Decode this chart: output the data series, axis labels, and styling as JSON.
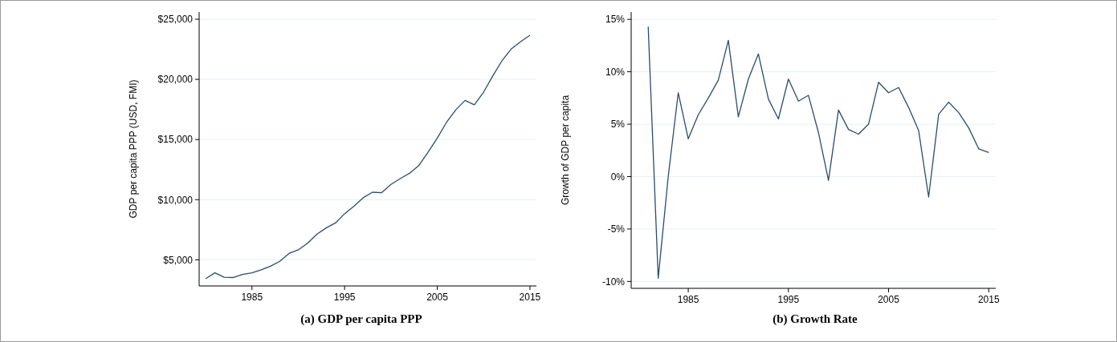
{
  "chart_data": [
    {
      "type": "line",
      "title": "(a) GDP per capita PPP",
      "ylabel": "GDP per capita PPP (USD, FMI)",
      "grid": "y",
      "marker": "none",
      "line_style": "solid",
      "x": [
        1980,
        1981,
        1982,
        1983,
        1984,
        1985,
        1986,
        1987,
        1988,
        1989,
        1990,
        1991,
        1992,
        1993,
        1994,
        1995,
        1996,
        1997,
        1998,
        1999,
        2000,
        2001,
        2002,
        2003,
        2004,
        2005,
        2006,
        2007,
        2008,
        2009,
        2010,
        2011,
        2012,
        2013,
        2014,
        2015
      ],
      "series": [
        {
          "color": "#2b4c6f",
          "values": [
            3430,
            3920,
            3550,
            3530,
            3780,
            3920,
            4170,
            4470,
            4880,
            5530,
            5830,
            6380,
            7120,
            7650,
            8060,
            8830,
            9450,
            10160,
            10620,
            10580,
            11270,
            11750,
            12190,
            12830,
            13940,
            15120,
            16430,
            17470,
            18250,
            17880,
            18940,
            20300,
            21570,
            22540,
            23140,
            23670
          ]
        }
      ],
      "xlim": [
        1979.3,
        2015.7
      ],
      "xticks": [
        1985,
        1995,
        2005,
        2015
      ],
      "ylim": [
        2830,
        25600
      ],
      "yticks": [
        {
          "value": 5000,
          "label": "$5,000"
        },
        {
          "value": 10000,
          "label": "$10,000"
        },
        {
          "value": 15000,
          "label": "$15,000"
        },
        {
          "value": 20000,
          "label": "$20,000"
        },
        {
          "value": 25000,
          "label": "$25,000"
        }
      ]
    },
    {
      "type": "line",
      "title": "(b) Growth Rate",
      "ylabel": "Growth of GDP per capita",
      "grid": "y",
      "marker": "none",
      "line_style": "solid",
      "x": [
        1981,
        1982,
        1983,
        1984,
        1985,
        1986,
        1987,
        1988,
        1989,
        1990,
        1991,
        1992,
        1993,
        1994,
        1995,
        1996,
        1997,
        1998,
        1999,
        2000,
        2001,
        2002,
        2003,
        2004,
        2005,
        2006,
        2007,
        2008,
        2009,
        2010,
        2011,
        2012,
        2013,
        2014,
        2015
      ],
      "series": [
        {
          "color": "#2b4c6f",
          "values": [
            14.3,
            -9.7,
            0,
            8.0,
            3.6,
            5.9,
            7.5,
            9.2,
            13.0,
            5.7,
            9.3,
            11.7,
            7.4,
            5.5,
            9.3,
            7.2,
            7.75,
            4.2,
            -0.35,
            6.35,
            4.5,
            4.05,
            5.0,
            9.0,
            8.0,
            8.5,
            6.6,
            4.4,
            -1.95,
            5.95,
            7.1,
            6.1,
            4.65,
            2.65,
            2.3
          ]
        }
      ],
      "xlim": [
        1979.3,
        2015.7
      ],
      "xticks": [
        1985,
        1995,
        2005,
        2015
      ],
      "ylim": [
        -10.66,
        15.7
      ],
      "yticks": [
        {
          "value": -10,
          "label": "-10%"
        },
        {
          "value": -5,
          "label": "-5%"
        },
        {
          "value": 0,
          "label": "0%"
        },
        {
          "value": 5,
          "label": "5%"
        },
        {
          "value": 10,
          "label": "10%"
        },
        {
          "value": 15,
          "label": "15%"
        }
      ]
    }
  ]
}
